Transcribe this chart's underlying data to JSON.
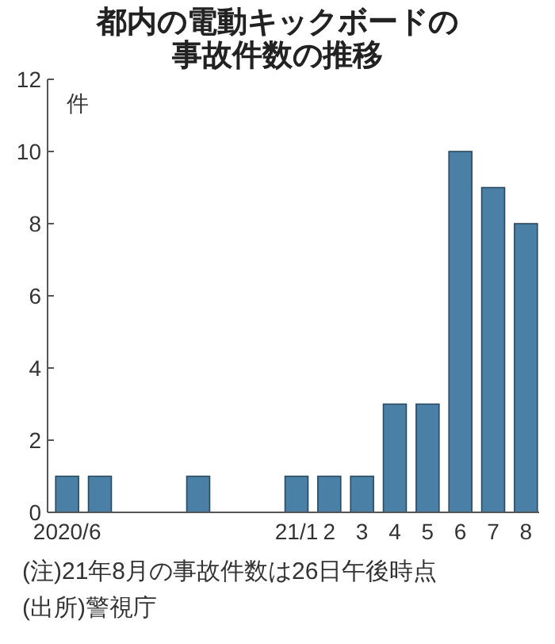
{
  "chart_data": {
    "type": "bar",
    "title": "都内の電動キックボードの事故件数の推移",
    "ylabel": "件",
    "categories": [
      "2020/6",
      null,
      null,
      null,
      null,
      null,
      null,
      "21/1",
      "2",
      "3",
      "4",
      "5",
      "6",
      "7",
      "8"
    ],
    "values": [
      1,
      1,
      0,
      0,
      1,
      0,
      0,
      1,
      1,
      1,
      3,
      3,
      10,
      9,
      8
    ],
    "color": "#4a7fa6",
    "ylim": [
      0,
      12
    ],
    "yticks": [
      0,
      2,
      4,
      6,
      8,
      10,
      12
    ],
    "grid": false,
    "annotations": [
      "(注)21年8月の事故件数は26日午後時点",
      "(出所)警視庁"
    ]
  }
}
